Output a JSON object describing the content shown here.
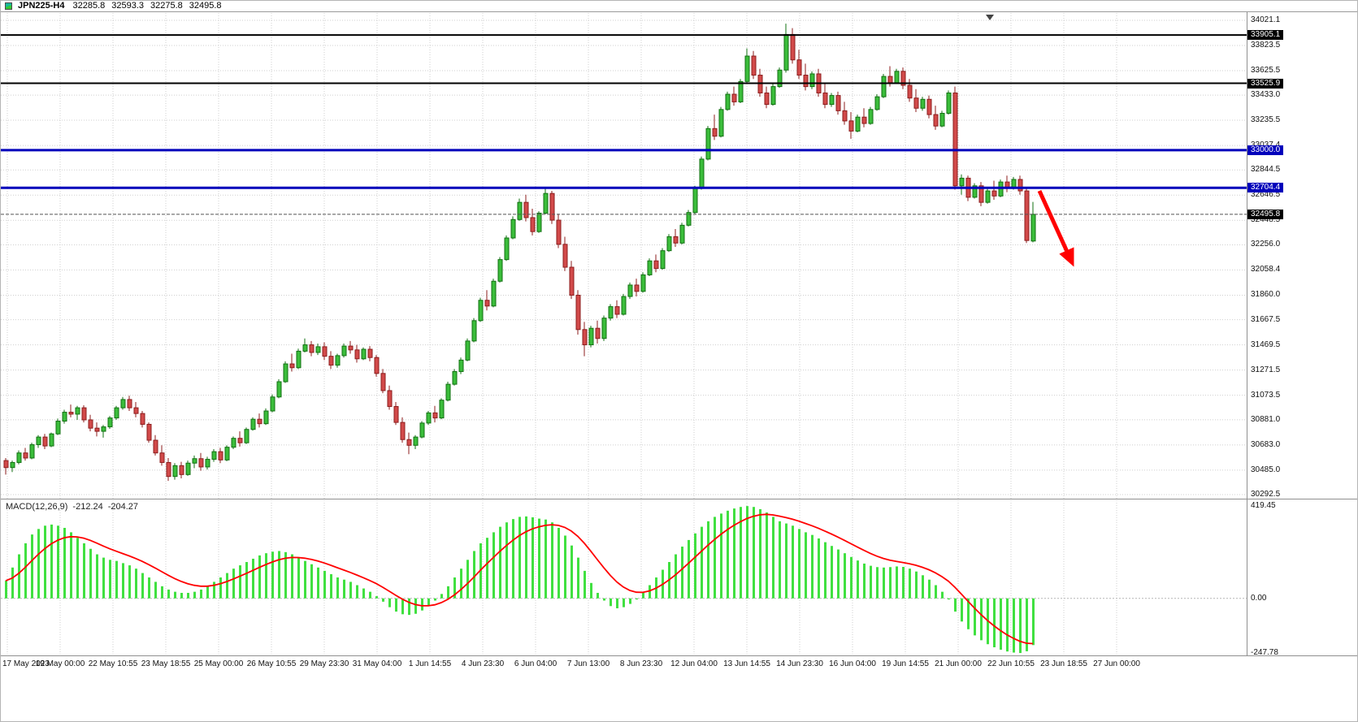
{
  "header": {
    "symbol": "JPN225-H4",
    "open": "32285.8",
    "high": "32593.3",
    "low": "32275.8",
    "close": "32495.8"
  },
  "macd_header": {
    "name": "MACD(12,26,9)",
    "macd_value": "-212.24",
    "signal_value": "-204.27"
  },
  "colors": {
    "up": "#3bbd3b",
    "up_dark": "#127012",
    "down": "#d24a4a",
    "down_dark": "#8c1d1d",
    "grid": "#cfcfcf",
    "pane_border": "#909090",
    "level_black": "#000000",
    "level_blue": "#0000bb",
    "current_price_line": "#555555",
    "badge_dark": "#000000",
    "badge_blue": "#0000bb",
    "macd_bar": "#40e040",
    "signal": "#ff0000",
    "arrow": "#ff0000"
  },
  "chart_data": [
    {
      "type": "candlestick",
      "title": "JPN225-H4",
      "symbol": "JPN225",
      "timeframe": "H4",
      "ylim": [
        30292.5,
        34021.1
      ],
      "y_ticks": [
        "34021.1",
        "33823.5",
        "33625.5",
        "33433.0",
        "33235.5",
        "33037.4",
        "32844.5",
        "32646.5",
        "32448.5",
        "32256.0",
        "32058.4",
        "31860.0",
        "31667.5",
        "31469.5",
        "31271.5",
        "31073.5",
        "30881.0",
        "30683.0",
        "30485.0",
        "30292.5"
      ],
      "x_labels": [
        "17 May 2023",
        "19 May 00:00",
        "22 May 10:55",
        "23 May 18:55",
        "25 May 00:00",
        "26 May 10:55",
        "29 May 23:30",
        "31 May 04:00",
        "1 Jun 14:55",
        "4 Jun 23:30",
        "6 Jun 04:00",
        "7 Jun 13:00",
        "8 Jun 23:30",
        "12 Jun 04:00",
        "13 Jun 14:55",
        "14 Jun 23:30",
        "16 Jun 04:00",
        "19 Jun 14:55",
        "21 Jun 00:00",
        "22 Jun 10:55",
        "23 Jun 18:55",
        "27 Jun 00:00"
      ],
      "levels": [
        {
          "price": 33905.1,
          "label": "33905.1",
          "color": "#000000",
          "width": 2
        },
        {
          "price": 33525.9,
          "label": "33525.9",
          "color": "#000000",
          "width": 2
        },
        {
          "price": 33000.0,
          "label": "33000.0",
          "color": "#0000bb",
          "width": 3
        },
        {
          "price": 32704.4,
          "label": "32704.4",
          "color": "#0000bb",
          "width": 3
        }
      ],
      "current_price": {
        "value": 32495.8,
        "label": "32495.8"
      },
      "arrow": {
        "color": "#ff0000",
        "direction": "down-right"
      },
      "candles": [
        [
          30560,
          30580,
          30450,
          30505
        ],
        [
          30505,
          30560,
          30470,
          30545
        ],
        [
          30545,
          30640,
          30530,
          30620
        ],
        [
          30620,
          30660,
          30560,
          30580
        ],
        [
          30580,
          30700,
          30570,
          30685
        ],
        [
          30685,
          30760,
          30660,
          30745
        ],
        [
          30745,
          30770,
          30650,
          30675
        ],
        [
          30675,
          30780,
          30665,
          30770
        ],
        [
          30770,
          30890,
          30760,
          30870
        ],
        [
          30870,
          30960,
          30850,
          30940
        ],
        [
          30940,
          31000,
          30900,
          30925
        ],
        [
          30925,
          30990,
          30880,
          30975
        ],
        [
          30975,
          30995,
          30860,
          30880
        ],
        [
          30880,
          30920,
          30790,
          30815
        ],
        [
          30815,
          30860,
          30750,
          30790
        ],
        [
          30790,
          30840,
          30740,
          30825
        ],
        [
          30825,
          30910,
          30810,
          30895
        ],
        [
          30895,
          30990,
          30880,
          30975
        ],
        [
          30975,
          31060,
          30960,
          31040
        ],
        [
          31040,
          31070,
          30950,
          30975
        ],
        [
          30975,
          31020,
          30900,
          30930
        ],
        [
          30930,
          30950,
          30820,
          30845
        ],
        [
          30845,
          30860,
          30700,
          30720
        ],
        [
          30720,
          30760,
          30600,
          30620
        ],
        [
          30620,
          30680,
          30520,
          30545
        ],
        [
          30545,
          30580,
          30400,
          30435
        ],
        [
          30435,
          30540,
          30410,
          30520
        ],
        [
          30520,
          30550,
          30420,
          30450
        ],
        [
          30450,
          30560,
          30440,
          30540
        ],
        [
          30540,
          30600,
          30500,
          30575
        ],
        [
          30575,
          30620,
          30480,
          30510
        ],
        [
          30510,
          30590,
          30490,
          30570
        ],
        [
          30570,
          30650,
          30550,
          30630
        ],
        [
          30630,
          30660,
          30540,
          30565
        ],
        [
          30565,
          30680,
          30555,
          30665
        ],
        [
          30665,
          30750,
          30650,
          30735
        ],
        [
          30735,
          30790,
          30670,
          30700
        ],
        [
          30700,
          30820,
          30690,
          30805
        ],
        [
          30805,
          30900,
          30795,
          30885
        ],
        [
          30885,
          30930,
          30820,
          30850
        ],
        [
          30850,
          30970,
          30840,
          30950
        ],
        [
          30950,
          31080,
          30940,
          31060
        ],
        [
          31060,
          31200,
          31050,
          31180
        ],
        [
          31180,
          31340,
          31170,
          31320
        ],
        [
          31320,
          31400,
          31260,
          31290
        ],
        [
          31290,
          31440,
          31280,
          31420
        ],
        [
          31420,
          31520,
          31410,
          31470
        ],
        [
          31470,
          31500,
          31380,
          31410
        ],
        [
          31410,
          31480,
          31390,
          31455
        ],
        [
          31455,
          31490,
          31350,
          31380
        ],
        [
          31380,
          31420,
          31280,
          31310
        ],
        [
          31310,
          31400,
          31290,
          31385
        ],
        [
          31385,
          31480,
          31370,
          31460
        ],
        [
          31460,
          31500,
          31400,
          31430
        ],
        [
          31430,
          31470,
          31330,
          31360
        ],
        [
          31360,
          31450,
          31350,
          31435
        ],
        [
          31435,
          31460,
          31340,
          31370
        ],
        [
          31370,
          31390,
          31220,
          31245
        ],
        [
          31245,
          31280,
          31090,
          31110
        ],
        [
          31110,
          31150,
          30960,
          30985
        ],
        [
          30985,
          31020,
          30840,
          30860
        ],
        [
          30860,
          30900,
          30700,
          30725
        ],
        [
          30725,
          30780,
          30610,
          30680
        ],
        [
          30680,
          30760,
          30650,
          30745
        ],
        [
          30745,
          30870,
          30735,
          30855
        ],
        [
          30855,
          30950,
          30840,
          30935
        ],
        [
          30935,
          30990,
          30860,
          30895
        ],
        [
          30895,
          31050,
          30885,
          31035
        ],
        [
          31035,
          31180,
          31025,
          31160
        ],
        [
          31160,
          31280,
          31150,
          31260
        ],
        [
          31260,
          31370,
          31240,
          31350
        ],
        [
          31350,
          31520,
          31340,
          31500
        ],
        [
          31500,
          31680,
          31490,
          31660
        ],
        [
          31660,
          31840,
          31650,
          31820
        ],
        [
          31820,
          31900,
          31740,
          31775
        ],
        [
          31775,
          31990,
          31765,
          31970
        ],
        [
          31970,
          32160,
          31960,
          32140
        ],
        [
          32140,
          32330,
          32130,
          32310
        ],
        [
          32310,
          32480,
          32300,
          32455
        ],
        [
          32455,
          32620,
          32445,
          32590
        ],
        [
          32590,
          32650,
          32440,
          32470
        ],
        [
          32470,
          32540,
          32330,
          32360
        ],
        [
          32360,
          32520,
          32350,
          32505
        ],
        [
          32505,
          32700,
          32495,
          32660
        ],
        [
          32660,
          32680,
          32420,
          32450
        ],
        [
          32450,
          32500,
          32230,
          32260
        ],
        [
          32260,
          32320,
          32050,
          32080
        ],
        [
          32080,
          32130,
          31830,
          31860
        ],
        [
          31860,
          31900,
          31550,
          31590
        ],
        [
          31590,
          31650,
          31380,
          31470
        ],
        [
          31470,
          31620,
          31450,
          31600
        ],
        [
          31600,
          31660,
          31480,
          31520
        ],
        [
          31520,
          31700,
          31500,
          31680
        ],
        [
          31680,
          31790,
          31660,
          31770
        ],
        [
          31770,
          31820,
          31680,
          31710
        ],
        [
          31710,
          31870,
          31700,
          31850
        ],
        [
          31850,
          31960,
          31830,
          31940
        ],
        [
          31940,
          31990,
          31850,
          31890
        ],
        [
          31890,
          32040,
          31880,
          32020
        ],
        [
          32020,
          32150,
          32010,
          32130
        ],
        [
          32130,
          32180,
          32040,
          32070
        ],
        [
          32070,
          32230,
          32060,
          32210
        ],
        [
          32210,
          32340,
          32200,
          32320
        ],
        [
          32320,
          32380,
          32240,
          32270
        ],
        [
          32270,
          32430,
          32260,
          32410
        ],
        [
          32410,
          32530,
          32400,
          32510
        ],
        [
          32510,
          32720,
          32500,
          32700
        ],
        [
          32700,
          32950,
          32690,
          32930
        ],
        [
          32930,
          33190,
          32920,
          33170
        ],
        [
          33170,
          33280,
          33080,
          33110
        ],
        [
          33110,
          33340,
          33100,
          33320
        ],
        [
          33320,
          33460,
          33310,
          33440
        ],
        [
          33440,
          33500,
          33350,
          33380
        ],
        [
          33380,
          33560,
          33370,
          33540
        ],
        [
          33540,
          33800,
          33530,
          33740
        ],
        [
          33740,
          33780,
          33560,
          33590
        ],
        [
          33590,
          33640,
          33420,
          33450
        ],
        [
          33450,
          33500,
          33330,
          33360
        ],
        [
          33360,
          33520,
          33350,
          33500
        ],
        [
          33500,
          33650,
          33490,
          33630
        ],
        [
          33630,
          33995,
          33610,
          33910
        ],
        [
          33910,
          33960,
          33680,
          33710
        ],
        [
          33710,
          33790,
          33560,
          33590
        ],
        [
          33590,
          33680,
          33470,
          33500
        ],
        [
          33500,
          33620,
          33480,
          33600
        ],
        [
          33600,
          33640,
          33420,
          33450
        ],
        [
          33450,
          33520,
          33330,
          33360
        ],
        [
          33360,
          33450,
          33340,
          33430
        ],
        [
          33430,
          33460,
          33280,
          33310
        ],
        [
          33310,
          33380,
          33200,
          33230
        ],
        [
          33230,
          33300,
          33090,
          33150
        ],
        [
          33150,
          33280,
          33140,
          33260
        ],
        [
          33260,
          33330,
          33180,
          33210
        ],
        [
          33210,
          33340,
          33200,
          33320
        ],
        [
          33320,
          33440,
          33310,
          33420
        ],
        [
          33420,
          33600,
          33410,
          33580
        ],
        [
          33580,
          33660,
          33500,
          33530
        ],
        [
          33530,
          33640,
          33520,
          33620
        ],
        [
          33620,
          33650,
          33480,
          33510
        ],
        [
          33510,
          33560,
          33380,
          33410
        ],
        [
          33410,
          33480,
          33300,
          33330
        ],
        [
          33330,
          33420,
          33310,
          33400
        ],
        [
          33400,
          33430,
          33250,
          33280
        ],
        [
          33280,
          33350,
          33160,
          33190
        ],
        [
          33190,
          33310,
          33180,
          33290
        ],
        [
          33290,
          33470,
          33280,
          33450
        ],
        [
          33450,
          33500,
          32690,
          32720
        ],
        [
          32720,
          32810,
          32650,
          32780
        ],
        [
          32780,
          32800,
          32600,
          32630
        ],
        [
          32630,
          32740,
          32620,
          32720
        ],
        [
          32720,
          32750,
          32560,
          32590
        ],
        [
          32590,
          32700,
          32580,
          32680
        ],
        [
          32680,
          32760,
          32610,
          32640
        ],
        [
          32640,
          32770,
          32630,
          32750
        ],
        [
          32750,
          32800,
          32670,
          32700
        ],
        [
          32700,
          32790,
          32690,
          32770
        ],
        [
          32770,
          32800,
          32650,
          32680
        ],
        [
          32680,
          32700,
          32270,
          32290
        ],
        [
          32285.8,
          32593.3,
          32275.8,
          32495.8
        ]
      ]
    },
    {
      "type": "bar",
      "name": "MACD(12,26,9)",
      "last_macd": -212.24,
      "last_signal": -204.27,
      "ylim": [
        -247.78,
        419.45
      ],
      "y_ticks": [
        "419.45",
        "0.00",
        "-247.78"
      ],
      "bar_color": "#40e040",
      "signal_color": "#ff0000",
      "values": [
        80,
        140,
        200,
        250,
        290,
        315,
        330,
        335,
        330,
        320,
        300,
        275,
        250,
        225,
        200,
        185,
        175,
        170,
        160,
        150,
        135,
        115,
        95,
        75,
        55,
        40,
        30,
        25,
        25,
        30,
        40,
        55,
        75,
        95,
        115,
        135,
        150,
        165,
        180,
        195,
        205,
        212,
        215,
        210,
        200,
        185,
        170,
        155,
        140,
        125,
        110,
        95,
        85,
        75,
        60,
        45,
        30,
        10,
        -15,
        -40,
        -60,
        -72,
        -75,
        -70,
        -55,
        -35,
        -10,
        20,
        55,
        95,
        135,
        175,
        215,
        250,
        275,
        300,
        325,
        345,
        360,
        370,
        372,
        368,
        362,
        358,
        345,
        320,
        285,
        240,
        185,
        125,
        70,
        25,
        -10,
        -35,
        -45,
        -40,
        -25,
        -5,
        25,
        60,
        95,
        130,
        165,
        200,
        235,
        265,
        295,
        325,
        350,
        370,
        385,
        398,
        408,
        415,
        419,
        415,
        405,
        390,
        370,
        350,
        340,
        330,
        315,
        300,
        288,
        272,
        255,
        238,
        222,
        205,
        188,
        172,
        158,
        148,
        142,
        140,
        142,
        145,
        143,
        135,
        122,
        105,
        85,
        60,
        30,
        -5,
        -60,
        -105,
        -140,
        -168,
        -190,
        -208,
        -222,
        -233,
        -241,
        -246,
        -248,
        -240,
        -212
      ]
    }
  ]
}
